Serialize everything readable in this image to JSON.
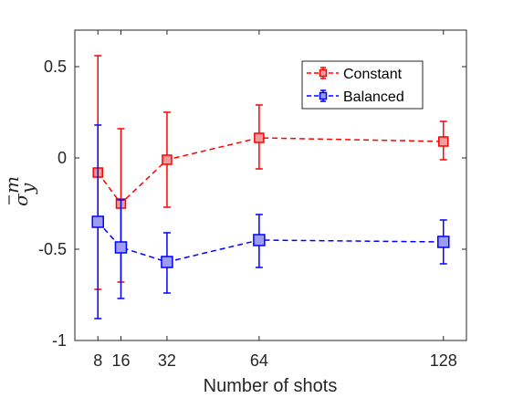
{
  "chart_data": {
    "type": "line",
    "x": [
      8,
      16,
      32,
      64,
      128
    ],
    "xticks": [
      "8",
      "16",
      "32",
      "64",
      "128"
    ],
    "xlabel": "Number of shots",
    "ylabel": {
      "main": "σ",
      "sup": "m",
      "sub": "y"
    },
    "xlim": [
      0,
      136
    ],
    "ylim": [
      -1,
      0.7
    ],
    "yticks": [
      {
        "value": -1,
        "label": "-1"
      },
      {
        "value": -0.5,
        "label": "-0.5"
      },
      {
        "value": 0,
        "label": "0"
      },
      {
        "value": 0.5,
        "label": "0.5"
      }
    ],
    "grid": false,
    "legend": "top-right",
    "series": [
      {
        "name": "Constant",
        "color": "#ff0000",
        "fill": "#f29d9d",
        "values": [
          -0.08,
          -0.25,
          -0.01,
          0.11,
          0.09
        ],
        "err_low": [
          -0.72,
          -0.68,
          -0.27,
          -0.06,
          -0.01
        ],
        "err_high": [
          0.56,
          0.16,
          0.25,
          0.29,
          0.2
        ]
      },
      {
        "name": "Balanced",
        "color": "#0000ff",
        "fill": "#9c9cf2",
        "values": [
          -0.35,
          -0.49,
          -0.57,
          -0.45,
          -0.46
        ],
        "err_low": [
          -0.88,
          -0.77,
          -0.74,
          -0.6,
          -0.58
        ],
        "err_high": [
          0.18,
          -0.23,
          -0.41,
          -0.31,
          -0.34
        ]
      }
    ]
  }
}
